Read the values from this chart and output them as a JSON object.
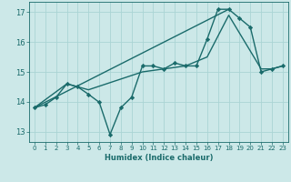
{
  "xlabel": "Humidex (Indice chaleur)",
  "xlim": [
    -0.5,
    23.5
  ],
  "ylim": [
    12.65,
    17.35
  ],
  "yticks": [
    13,
    14,
    15,
    16,
    17
  ],
  "xticks": [
    0,
    1,
    2,
    3,
    4,
    5,
    6,
    7,
    8,
    9,
    10,
    11,
    12,
    13,
    14,
    15,
    16,
    17,
    18,
    19,
    20,
    21,
    22,
    23
  ],
  "bg_color": "#cce8e8",
  "grid_color": "#aad4d4",
  "line_color": "#1a6b6b",
  "lines": [
    {
      "x": [
        0,
        1,
        2,
        3,
        4,
        5,
        6,
        7,
        8,
        9,
        10,
        11,
        12,
        13,
        14,
        15,
        16,
        17,
        18,
        19,
        20,
        21,
        22,
        23
      ],
      "y": [
        13.8,
        13.9,
        14.15,
        14.6,
        14.5,
        14.25,
        13.98,
        12.9,
        13.8,
        14.15,
        15.2,
        15.2,
        15.1,
        15.3,
        15.2,
        15.2,
        16.1,
        17.1,
        17.1,
        16.8,
        16.5,
        15.0,
        15.1,
        15.2
      ],
      "marker": "D",
      "ms": 2.2,
      "lw": 1.0
    },
    {
      "x": [
        0,
        18
      ],
      "y": [
        13.8,
        17.1
      ],
      "marker": null,
      "ms": 0,
      "lw": 1.0
    },
    {
      "x": [
        0,
        3,
        5,
        10,
        13,
        14,
        16,
        18,
        21,
        22,
        23
      ],
      "y": [
        13.8,
        14.6,
        14.4,
        15.0,
        15.15,
        15.2,
        15.5,
        16.9,
        15.1,
        15.1,
        15.2
      ],
      "marker": null,
      "ms": 0,
      "lw": 1.0
    }
  ]
}
